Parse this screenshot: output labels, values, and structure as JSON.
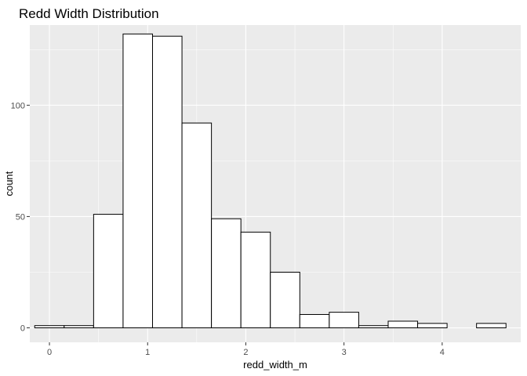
{
  "chart_data": {
    "type": "bar",
    "title": "Redd Width Distribution",
    "xlabel": "redd_width_m",
    "ylabel": "count",
    "xlim": [
      -0.2,
      4.8
    ],
    "ylim": [
      -6.5,
      136
    ],
    "x_ticks": [
      0,
      1,
      2,
      3,
      4
    ],
    "y_ticks": [
      0,
      50,
      100
    ],
    "grid": true,
    "legend": "none",
    "bin_width": 0.3,
    "bins": [
      {
        "x0": -0.15,
        "x1": 0.15,
        "count": 1
      },
      {
        "x0": 0.15,
        "x1": 0.45,
        "count": 1
      },
      {
        "x0": 0.45,
        "x1": 0.75,
        "count": 51
      },
      {
        "x0": 0.75,
        "x1": 1.05,
        "count": 132
      },
      {
        "x0": 1.05,
        "x1": 1.35,
        "count": 131
      },
      {
        "x0": 1.35,
        "x1": 1.65,
        "count": 92
      },
      {
        "x0": 1.65,
        "x1": 1.95,
        "count": 49
      },
      {
        "x0": 1.95,
        "x1": 2.25,
        "count": 43
      },
      {
        "x0": 2.25,
        "x1": 2.55,
        "count": 25
      },
      {
        "x0": 2.55,
        "x1": 2.85,
        "count": 6
      },
      {
        "x0": 2.85,
        "x1": 3.15,
        "count": 7
      },
      {
        "x0": 3.15,
        "x1": 3.45,
        "count": 1
      },
      {
        "x0": 3.45,
        "x1": 3.75,
        "count": 3
      },
      {
        "x0": 3.75,
        "x1": 4.05,
        "count": 2
      },
      {
        "x0": 4.05,
        "x1": 4.35,
        "count": 0
      },
      {
        "x0": 4.35,
        "x1": 4.65,
        "count": 2
      }
    ],
    "colors": {
      "panel_background": "#EBEBEB",
      "grid_major": "#FFFFFF",
      "bar_fill": "#FFFFFF",
      "bar_outline": "#000000"
    }
  }
}
